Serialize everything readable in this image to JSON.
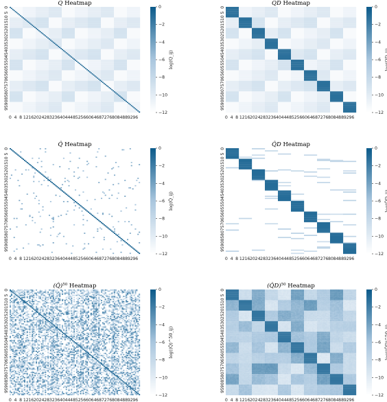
{
  "figure": {
    "colormap": {
      "low": "#ffffff",
      "mid": "#a9c6de",
      "high": "#0b5a8a"
    },
    "matrix_size": 100,
    "tick_labels": [
      "0",
      "4",
      "8",
      "12",
      "16",
      "20",
      "24",
      "28",
      "32",
      "36",
      "40",
      "44",
      "48",
      "52",
      "56",
      "60",
      "64",
      "68",
      "72",
      "76",
      "80",
      "84",
      "88",
      "92",
      "96"
    ],
    "y_tick_labels": [
      "0",
      "5",
      "10",
      "15",
      "20",
      "25",
      "30",
      "35",
      "40",
      "45",
      "50",
      "55",
      "60",
      "65",
      "70",
      "75",
      "80",
      "85",
      "90",
      "95"
    ]
  },
  "chart_data": [
    {
      "type": "heatmap",
      "title": "Q Heatmap",
      "title_parts": [
        "Q",
        " Heatmap"
      ],
      "colorbar_label": "log(Q_ij)",
      "colorbar_ticks": [
        0,
        -2,
        -4,
        -6,
        -8,
        -10,
        -12
      ],
      "vmin": -12,
      "vmax": 0,
      "pattern": "diagonal-on-smooth-background",
      "blocks": 0,
      "diagonal_value": 0,
      "background_range": [
        -11.5,
        -9.0
      ],
      "missing_fraction": 0
    },
    {
      "type": "heatmap",
      "title": "QD Heatmap",
      "title_parts": [
        "QD",
        " Heatmap"
      ],
      "colorbar_label": "log(QD_ij)",
      "colorbar_ticks": [
        0,
        -2,
        -4,
        -6,
        -8,
        -10,
        -12
      ],
      "vmin": -12,
      "vmax": 0,
      "pattern": "block-diagonal-on-smooth-background",
      "blocks": 10,
      "block_value": -1.2,
      "background_range": [
        -11.5,
        -9.0
      ],
      "missing_fraction": 0
    },
    {
      "type": "heatmap",
      "title": "Q̂ Heatmap",
      "title_parts": [
        "Q̂",
        " Heatmap"
      ],
      "colorbar_label": "log(Q̂_ij)",
      "colorbar_ticks": [
        0,
        -2,
        -4,
        -6,
        -8,
        -10,
        -12
      ],
      "vmin": -12,
      "vmax": 0,
      "pattern": "diagonal-with-sparse-points",
      "blocks": 0,
      "diagonal_value": 0,
      "sparse_points": 220,
      "sparse_value_range": [
        -6,
        -4
      ]
    },
    {
      "type": "heatmap",
      "title": "Q̂D Heatmap",
      "title_parts": [
        "Q̂D",
        " Heatmap"
      ],
      "colorbar_label": "log(Q̂D_ij)",
      "colorbar_ticks": [
        0,
        -2,
        -4,
        -6,
        -8,
        -10,
        -12
      ],
      "vmin": -12,
      "vmax": 0,
      "pattern": "block-diagonal-with-sparse-rows",
      "blocks": 10,
      "block_value": -1.0,
      "sparse_row_segments": 70,
      "sparse_value_range": [
        -8.5,
        -7
      ]
    },
    {
      "type": "heatmap",
      "title": "(Q̂)^50 Heatmap",
      "title_parts": [
        "(Q̂)",
        "50",
        " Heatmap"
      ],
      "colorbar_label": "log((Q̂)^50_ij)",
      "colorbar_ticks": [
        0,
        -2,
        -4,
        -6,
        -8,
        -10,
        -12
      ],
      "vmin": -12,
      "vmax": 0,
      "pattern": "diagonal-with-dense-noise",
      "blocks": 0,
      "diagonal_value": -0.3,
      "noise_value_range": [
        -11,
        -2
      ]
    },
    {
      "type": "heatmap",
      "title": "(Q̂D)^50 Heatmap",
      "title_parts": [
        "(Q̂D)",
        "50",
        " Heatmap"
      ],
      "colorbar_label": "log((Q̂D)^50_ij)",
      "colorbar_ticks": [
        0,
        -2,
        -4,
        -6,
        -8,
        -10,
        -12
      ],
      "vmin": -12,
      "vmax": 0,
      "pattern": "block-diagonal-patchwork",
      "blocks": 10,
      "block_value": -1.5,
      "patch_value_range": [
        -9.5,
        -3.5
      ]
    }
  ]
}
